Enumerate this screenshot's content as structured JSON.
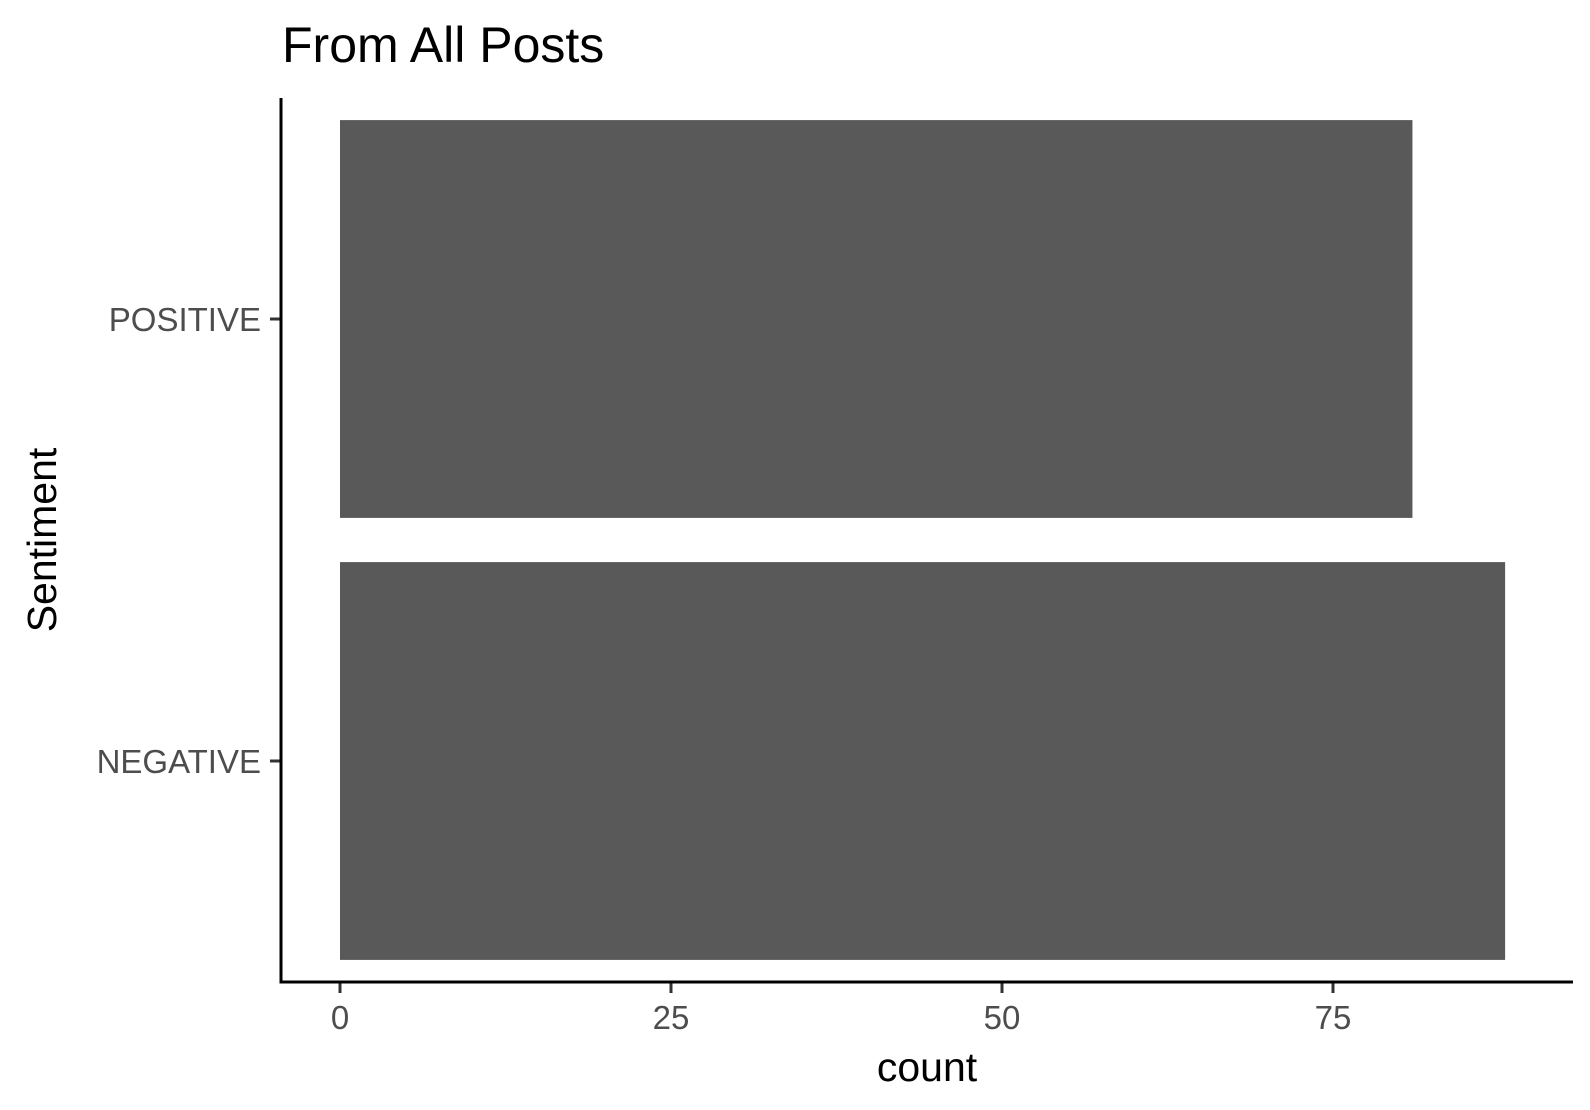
{
  "chart_data": {
    "type": "bar",
    "orientation": "horizontal",
    "title": "From All Posts",
    "xlabel": "count",
    "ylabel": "Sentiment",
    "categories": [
      "POSITIVE",
      "NEGATIVE"
    ],
    "values": [
      81,
      88
    ],
    "xlim": [
      0,
      92
    ],
    "x_ticks": [
      0,
      25,
      50,
      75
    ],
    "grid": false,
    "bar_color": "#595959"
  }
}
